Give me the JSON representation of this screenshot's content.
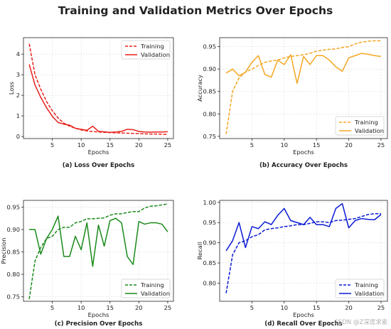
{
  "figure": {
    "title": "Training and Validation Metrics Over Epochs",
    "watermark": "CSDN @Z深度求索"
  },
  "chart_data": [
    {
      "type": "line",
      "caption": "(a) Loss Over Epochs",
      "xlabel": "Epochs",
      "ylabel": "Loss",
      "xlim": [
        0,
        26
      ],
      "ylim": [
        -0.1,
        4.8
      ],
      "xticks": [
        5,
        10,
        15,
        20,
        25
      ],
      "yticks": [
        0,
        1,
        2,
        3,
        4
      ],
      "grid": true,
      "legend_position": "top-right",
      "x": [
        1,
        2,
        3,
        4,
        5,
        6,
        7,
        8,
        9,
        10,
        11,
        12,
        13,
        14,
        15,
        16,
        17,
        18,
        19,
        20,
        21,
        22,
        23,
        24,
        25
      ],
      "series": [
        {
          "name": "Training",
          "style": "dashed",
          "color": "#e8201a",
          "values": [
            4.5,
            3.0,
            2.3,
            1.7,
            1.25,
            0.9,
            0.65,
            0.5,
            0.4,
            0.32,
            0.27,
            0.24,
            0.22,
            0.2,
            0.19,
            0.18,
            0.17,
            0.16,
            0.15,
            0.14,
            0.13,
            0.12,
            0.12,
            0.11,
            0.1
          ]
        },
        {
          "name": "Validation",
          "style": "solid",
          "color": "#e8201a",
          "values": [
            3.5,
            2.5,
            1.9,
            1.4,
            0.98,
            0.68,
            0.6,
            0.55,
            0.4,
            0.35,
            0.3,
            0.5,
            0.25,
            0.23,
            0.2,
            0.22,
            0.25,
            0.35,
            0.33,
            0.25,
            0.22,
            0.21,
            0.22,
            0.22,
            0.23
          ]
        }
      ]
    },
    {
      "type": "line",
      "caption": "(b) Accuracy Over Epochs",
      "xlabel": "Epochs",
      "ylabel": "Accuracy",
      "xlim": [
        0,
        26
      ],
      "ylim": [
        0.745,
        0.97
      ],
      "xticks": [
        5,
        10,
        15,
        20,
        25
      ],
      "yticks": [
        0.75,
        0.8,
        0.85,
        0.9,
        0.95
      ],
      "grid": true,
      "legend_position": "lower-right",
      "x": [
        1,
        2,
        3,
        4,
        5,
        6,
        7,
        8,
        9,
        10,
        11,
        12,
        13,
        14,
        15,
        16,
        17,
        18,
        19,
        20,
        21,
        22,
        23,
        24,
        25
      ],
      "series": [
        {
          "name": "Training",
          "style": "dashed",
          "color": "#f5a623",
          "values": [
            0.755,
            0.85,
            0.88,
            0.893,
            0.9,
            0.908,
            0.915,
            0.918,
            0.92,
            0.925,
            0.928,
            0.93,
            0.932,
            0.935,
            0.94,
            0.942,
            0.944,
            0.945,
            0.948,
            0.95,
            0.956,
            0.96,
            0.962,
            0.963,
            0.963
          ]
        },
        {
          "name": "Validation",
          "style": "solid",
          "color": "#f5a623",
          "values": [
            0.891,
            0.9,
            0.885,
            0.893,
            0.915,
            0.93,
            0.888,
            0.882,
            0.92,
            0.91,
            0.932,
            0.868,
            0.928,
            0.91,
            0.93,
            0.93,
            0.92,
            0.905,
            0.895,
            0.925,
            0.93,
            0.935,
            0.933,
            0.93,
            0.928
          ]
        }
      ]
    },
    {
      "type": "line",
      "caption": "(c) Precision Over Epochs",
      "xlabel": "Epochs",
      "ylabel": "Precision",
      "xlim": [
        0,
        26
      ],
      "ylim": [
        0.74,
        0.965
      ],
      "xticks": [
        5,
        10,
        15,
        20,
        25
      ],
      "yticks": [
        0.75,
        0.8,
        0.85,
        0.9,
        0.95
      ],
      "grid": true,
      "legend_position": "lower-right",
      "x": [
        1,
        2,
        3,
        4,
        5,
        6,
        7,
        8,
        9,
        10,
        11,
        12,
        13,
        14,
        15,
        16,
        17,
        18,
        19,
        20,
        21,
        22,
        23,
        24,
        25
      ],
      "series": [
        {
          "name": "Training",
          "style": "dashed",
          "color": "#1a8a1a",
          "values": [
            0.745,
            0.83,
            0.86,
            0.88,
            0.885,
            0.9,
            0.905,
            0.905,
            0.915,
            0.918,
            0.924,
            0.924,
            0.925,
            0.926,
            0.932,
            0.935,
            0.935,
            0.938,
            0.94,
            0.94,
            0.948,
            0.952,
            0.953,
            0.955,
            0.957
          ]
        },
        {
          "name": "Validation",
          "style": "solid",
          "color": "#1a8a1a",
          "values": [
            0.9,
            0.9,
            0.845,
            0.88,
            0.9,
            0.93,
            0.84,
            0.84,
            0.885,
            0.855,
            0.915,
            0.818,
            0.91,
            0.863,
            0.92,
            0.925,
            0.915,
            0.84,
            0.822,
            0.918,
            0.912,
            0.915,
            0.915,
            0.912,
            0.895
          ]
        }
      ]
    },
    {
      "type": "line",
      "caption": "(d) Recall Over Epochs",
      "xlabel": "Epochs",
      "ylabel": "Recall",
      "xlim": [
        0,
        26
      ],
      "ylim": [
        0.755,
        1.005
      ],
      "xticks": [
        5,
        10,
        15,
        20,
        25
      ],
      "yticks": [
        0.8,
        0.85,
        0.9,
        0.95,
        1.0
      ],
      "grid": true,
      "legend_position": "lower-right",
      "x": [
        1,
        2,
        3,
        4,
        5,
        6,
        7,
        8,
        9,
        10,
        11,
        12,
        13,
        14,
        15,
        16,
        17,
        18,
        19,
        20,
        21,
        22,
        23,
        24,
        25
      ],
      "series": [
        {
          "name": "Training",
          "style": "dashed",
          "color": "#0a1ad4",
          "values": [
            0.775,
            0.87,
            0.9,
            0.905,
            0.915,
            0.92,
            0.932,
            0.935,
            0.937,
            0.94,
            0.942,
            0.945,
            0.945,
            0.948,
            0.952,
            0.952,
            0.95,
            0.955,
            0.956,
            0.958,
            0.96,
            0.965,
            0.97,
            0.972,
            0.972
          ]
        },
        {
          "name": "Validation",
          "style": "solid",
          "color": "#0a1ad4",
          "values": [
            0.88,
            0.905,
            0.95,
            0.888,
            0.94,
            0.935,
            0.952,
            0.945,
            0.968,
            0.985,
            0.955,
            0.95,
            0.945,
            0.963,
            0.945,
            0.945,
            0.94,
            0.985,
            0.997,
            0.937,
            0.955,
            0.96,
            0.958,
            0.957,
            0.97
          ]
        }
      ]
    }
  ]
}
